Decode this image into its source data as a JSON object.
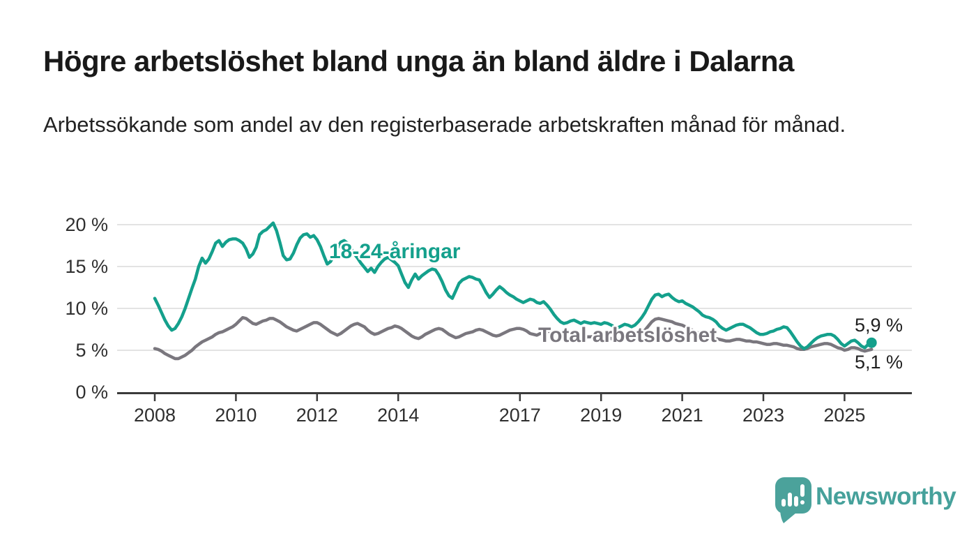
{
  "header": {
    "title": "Högre arbetslöshet bland unga än bland äldre i Dalarna",
    "subtitle": "Arbetssökande som andel av den registerbaserade arbetskraften månad för månad."
  },
  "chart_data": {
    "type": "line",
    "title": "Högre arbetslöshet bland unga än bland äldre i Dalarna",
    "subtitle": "Arbetssökande som andel av den registerbaserade arbetskraften månad för månad.",
    "x_unit": "month",
    "x_start": "2008-01",
    "x_end": "2025-09",
    "x_ticks": [
      2008,
      2010,
      2012,
      2014,
      2017,
      2019,
      2021,
      2023,
      2025
    ],
    "y_ticks": [
      {
        "value": 0,
        "label": "0 %"
      },
      {
        "value": 5,
        "label": "5 %"
      },
      {
        "value": 10,
        "label": "10 %"
      },
      {
        "value": 15,
        "label": "15 %"
      },
      {
        "value": 20,
        "label": "20 %"
      }
    ],
    "ylim": [
      0,
      21
    ],
    "grid": true,
    "legend_position": "inline-labels",
    "series": [
      {
        "name": "18-24-åringar",
        "color": "#14a08c",
        "end_label": "5,9 %",
        "end_value": 5.9,
        "end_dot": true,
        "values": [
          11.2,
          10.4,
          9.5,
          8.6,
          7.9,
          7.4,
          7.6,
          8.2,
          9.0,
          10.0,
          11.2,
          12.4,
          13.5,
          15.0,
          16.0,
          15.4,
          15.9,
          16.8,
          17.8,
          18.1,
          17.4,
          17.9,
          18.2,
          18.3,
          18.3,
          18.1,
          17.8,
          17.1,
          16.1,
          16.5,
          17.3,
          18.8,
          19.2,
          19.4,
          19.8,
          20.2,
          19.3,
          17.9,
          16.3,
          15.8,
          15.9,
          16.6,
          17.6,
          18.4,
          18.8,
          18.9,
          18.5,
          18.7,
          18.2,
          17.4,
          16.3,
          15.3,
          15.6,
          16.4,
          17.2,
          17.9,
          18.1,
          17.8,
          17.2,
          16.5,
          16.0,
          15.4,
          14.9,
          14.4,
          14.8,
          14.3,
          15.0,
          15.5,
          15.9,
          16.1,
          15.8,
          15.5,
          15.1,
          14.1,
          13.1,
          12.5,
          13.4,
          14.1,
          13.5,
          13.9,
          14.2,
          14.5,
          14.7,
          14.6,
          14.0,
          13.2,
          12.2,
          11.5,
          11.2,
          12.1,
          13.0,
          13.4,
          13.6,
          13.8,
          13.7,
          13.5,
          13.4,
          12.7,
          11.9,
          11.3,
          11.7,
          12.2,
          12.6,
          12.3,
          11.9,
          11.6,
          11.4,
          11.1,
          10.9,
          10.7,
          10.9,
          11.1,
          11.0,
          10.7,
          10.6,
          10.8,
          10.4,
          9.9,
          9.3,
          8.8,
          8.4,
          8.2,
          8.3,
          8.5,
          8.6,
          8.4,
          8.2,
          8.4,
          8.3,
          8.2,
          8.3,
          8.2,
          8.1,
          8.3,
          8.2,
          8.0,
          7.8,
          7.7,
          7.9,
          8.1,
          8.0,
          7.8,
          8.0,
          8.4,
          8.9,
          9.5,
          10.3,
          11.1,
          11.6,
          11.7,
          11.4,
          11.6,
          11.7,
          11.3,
          11.0,
          10.8,
          10.9,
          10.6,
          10.4,
          10.2,
          9.9,
          9.6,
          9.2,
          9.0,
          8.9,
          8.7,
          8.4,
          7.9,
          7.6,
          7.4,
          7.6,
          7.8,
          8.0,
          8.1,
          8.1,
          7.9,
          7.7,
          7.4,
          7.1,
          6.9,
          6.9,
          7.0,
          7.2,
          7.3,
          7.5,
          7.6,
          7.8,
          7.7,
          7.2,
          6.6,
          6.0,
          5.5,
          5.2,
          5.4,
          5.8,
          6.2,
          6.5,
          6.7,
          6.8,
          6.9,
          6.9,
          6.7,
          6.3,
          5.8,
          5.5,
          5.8,
          6.1,
          6.2,
          5.9,
          5.5,
          5.3,
          5.7,
          5.9
        ]
      },
      {
        "name": "Total arbetslöshet",
        "color": "#7a777e",
        "end_label": "5,1 %",
        "end_value": 5.1,
        "end_dot": false,
        "values": [
          5.2,
          5.1,
          4.9,
          4.6,
          4.4,
          4.2,
          4.0,
          4.0,
          4.2,
          4.4,
          4.7,
          5.0,
          5.4,
          5.7,
          6.0,
          6.2,
          6.4,
          6.6,
          6.9,
          7.1,
          7.2,
          7.4,
          7.6,
          7.8,
          8.1,
          8.5,
          8.9,
          8.8,
          8.5,
          8.2,
          8.1,
          8.3,
          8.5,
          8.6,
          8.8,
          8.8,
          8.6,
          8.4,
          8.1,
          7.8,
          7.6,
          7.4,
          7.3,
          7.5,
          7.7,
          7.9,
          8.1,
          8.3,
          8.3,
          8.1,
          7.8,
          7.5,
          7.2,
          7.0,
          6.8,
          7.0,
          7.3,
          7.6,
          7.9,
          8.1,
          8.2,
          8.0,
          7.8,
          7.4,
          7.1,
          6.9,
          7.0,
          7.2,
          7.4,
          7.6,
          7.7,
          7.9,
          7.8,
          7.6,
          7.3,
          7.0,
          6.7,
          6.5,
          6.4,
          6.6,
          6.9,
          7.1,
          7.3,
          7.5,
          7.6,
          7.5,
          7.2,
          6.9,
          6.7,
          6.5,
          6.6,
          6.8,
          7.0,
          7.1,
          7.2,
          7.4,
          7.5,
          7.4,
          7.2,
          7.0,
          6.8,
          6.7,
          6.8,
          7.0,
          7.2,
          7.4,
          7.5,
          7.6,
          7.6,
          7.5,
          7.3,
          7.0,
          6.9,
          6.8,
          7.0,
          7.2,
          7.3,
          7.2,
          7.1,
          7.0,
          6.9,
          6.8,
          6.6,
          6.5,
          6.4,
          6.3,
          6.4,
          6.5,
          6.6,
          6.6,
          6.7,
          6.7,
          6.7,
          6.6,
          6.5,
          6.4,
          6.3,
          6.3,
          6.4,
          6.5,
          6.6,
          6.6,
          6.7,
          6.9,
          7.1,
          7.4,
          7.9,
          8.4,
          8.7,
          8.8,
          8.7,
          8.6,
          8.5,
          8.4,
          8.2,
          8.1,
          8.0,
          7.8,
          7.6,
          7.4,
          7.2,
          7.0,
          6.9,
          6.8,
          6.7,
          6.6,
          6.4,
          6.3,
          6.2,
          6.1,
          6.1,
          6.2,
          6.3,
          6.3,
          6.2,
          6.1,
          6.1,
          6.0,
          6.0,
          5.9,
          5.8,
          5.7,
          5.7,
          5.8,
          5.8,
          5.7,
          5.6,
          5.6,
          5.5,
          5.4,
          5.2,
          5.1,
          5.1,
          5.2,
          5.4,
          5.5,
          5.6,
          5.7,
          5.8,
          5.8,
          5.7,
          5.5,
          5.3,
          5.2,
          5.0,
          5.1,
          5.3,
          5.3,
          5.2,
          5.0,
          4.9,
          5.0,
          5.1
        ]
      }
    ]
  },
  "footer": {
    "brand": "Newsworthy"
  }
}
